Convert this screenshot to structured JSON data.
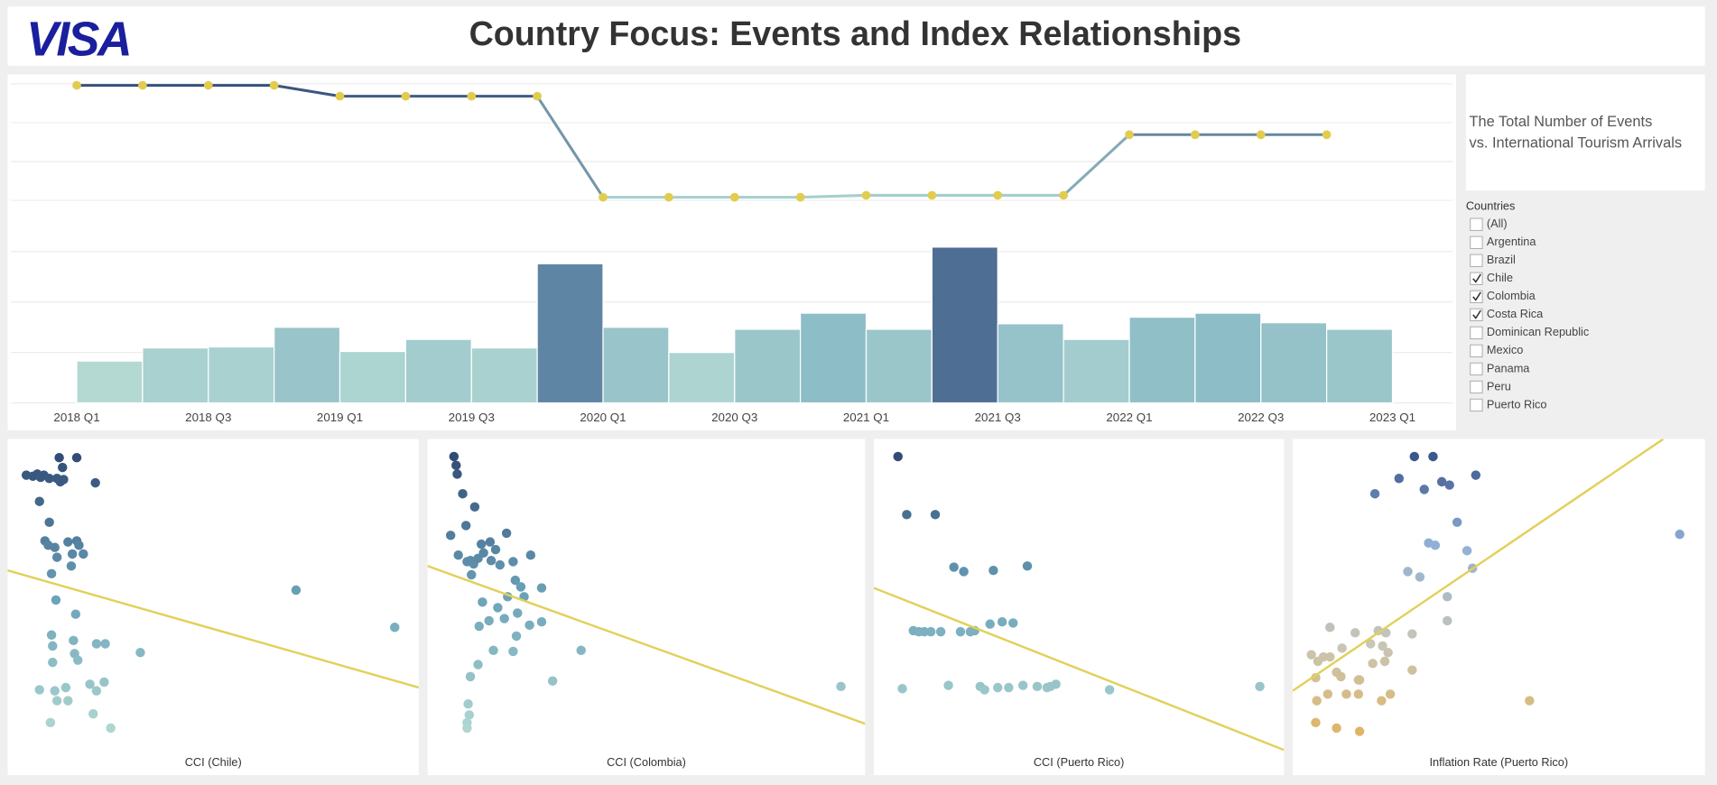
{
  "header": {
    "logo": "VISA",
    "title": "Country Focus: Events and Index Relationships"
  },
  "description": {
    "lines": [
      "The Total Number of Events",
      "vs. International Tourism Arrivals"
    ]
  },
  "filter": {
    "title": "Countries",
    "options": [
      {
        "label": "(All)",
        "checked": false
      },
      {
        "label": "Argentina",
        "checked": false
      },
      {
        "label": "Brazil",
        "checked": false
      },
      {
        "label": "Chile",
        "checked": true
      },
      {
        "label": "Colombia",
        "checked": true
      },
      {
        "label": "Costa Rica",
        "checked": true
      },
      {
        "label": "Dominican Republic",
        "checked": false
      },
      {
        "label": "Mexico",
        "checked": false
      },
      {
        "label": "Panama",
        "checked": false
      },
      {
        "label": "Peru",
        "checked": false
      },
      {
        "label": "Puerto Rico",
        "checked": false
      }
    ]
  },
  "chart_data": [
    {
      "type": "combo",
      "x": [
        0,
        1,
        2,
        3,
        4,
        5,
        6,
        7,
        8,
        9,
        10,
        11,
        12,
        13,
        14,
        15,
        16,
        17,
        18,
        19
      ],
      "xlim": [
        0,
        20
      ],
      "xticks": [
        {
          "value": 0,
          "label": "2018 Q1"
        },
        {
          "value": 2,
          "label": "2018 Q3"
        },
        {
          "value": 4,
          "label": "2019 Q1"
        },
        {
          "value": 6,
          "label": "2019 Q3"
        },
        {
          "value": 8,
          "label": "2020 Q1"
        },
        {
          "value": 10,
          "label": "2020 Q3"
        },
        {
          "value": 12,
          "label": "2021 Q1"
        },
        {
          "value": 14,
          "label": "2021 Q3"
        },
        {
          "value": 16,
          "label": "2022 Q1"
        },
        {
          "value": 18,
          "label": "2022 Q3"
        },
        {
          "value": 20,
          "label": "2023 Q1"
        }
      ],
      "ylim": [
        0,
        38
      ],
      "yticks": [
        0,
        10,
        20,
        30
      ],
      "y2lim": [
        0,
        3.1
      ],
      "y2ticks": [
        0,
        1,
        2,
        3
      ],
      "grid": true,
      "series": [
        {
          "type": "line",
          "axis": "y2",
          "color_range": [
            "#a9d3d1",
            "#2f4a78"
          ],
          "marker_color": "#e2cc4e",
          "values": [
            2.96,
            2.96,
            2.96,
            2.96,
            2.68,
            2.68,
            2.68,
            2.68,
            0.08,
            0.08,
            0.08,
            0.08,
            0.13,
            0.13,
            0.13,
            0.13,
            1.69,
            1.69,
            1.69,
            1.69
          ]
        },
        {
          "type": "bar",
          "color_range": [
            "#bde0d5",
            "#7fb2c2",
            "#32467a"
          ],
          "values": [
            8.3,
            10.9,
            11.1,
            15,
            10.2,
            12.6,
            10.9,
            27.6,
            15,
            10,
            14.6,
            17.8,
            14.6,
            30.9,
            15.7,
            12.6,
            17,
            17.8,
            15.9,
            14.6
          ]
        }
      ]
    },
    {
      "type": "scatter",
      "x_label": "CCI (Chile)",
      "xlim": [
        0,
        375
      ],
      "ylim": [
        0,
        275
      ],
      "color_range": [
        "#b6dcd3",
        "#6aa1b9",
        "#2c4470"
      ],
      "x": [
        17,
        23,
        27,
        30,
        33,
        38,
        45,
        48,
        50,
        51,
        63,
        47,
        80,
        29,
        38,
        34,
        37,
        43,
        45,
        40,
        55,
        59,
        63,
        65,
        69,
        58,
        263,
        353,
        44,
        62,
        40,
        41,
        60,
        61,
        81,
        89,
        41,
        64,
        121,
        29,
        43,
        53,
        75,
        88,
        45,
        55,
        81,
        78,
        39,
        94
      ],
      "values": [
        246,
        245,
        247,
        244,
        246,
        243,
        243,
        240,
        253,
        242,
        262,
        262,
        239,
        222,
        203,
        186,
        182,
        180,
        171,
        156,
        185,
        174,
        186,
        182,
        174,
        163,
        141,
        107,
        132,
        119,
        100,
        90,
        95,
        83,
        92,
        92,
        75,
        77,
        84,
        50,
        49,
        52,
        55,
        57,
        40,
        40,
        49,
        28,
        20,
        15
      ],
      "trend": {
        "color": "#e2d05a",
        "x": [
          0,
          375
        ],
        "values": [
          159,
          52
        ]
      }
    },
    {
      "type": "scatter",
      "x_label": "CCI (Colombia)",
      "xlim": [
        0,
        399
      ],
      "ylim": [
        0,
        275
      ],
      "color_range": [
        "#b6dcd3",
        "#6aa1b9",
        "#2c4470"
      ],
      "x": [
        24,
        26,
        27,
        32,
        43,
        21,
        35,
        49,
        57,
        72,
        28,
        36,
        39,
        42,
        46,
        51,
        62,
        40,
        58,
        66,
        78,
        94,
        80,
        85,
        104,
        50,
        64,
        73,
        88,
        70,
        82,
        56,
        47,
        93,
        104,
        81,
        60,
        78,
        140,
        46,
        39,
        114,
        37,
        38,
        36,
        36,
        377
      ],
      "values": [
        263,
        255,
        247,
        229,
        217,
        191,
        200,
        183,
        185,
        193,
        173,
        167,
        168,
        165,
        170,
        175,
        178,
        155,
        168,
        164,
        167,
        173,
        150,
        144,
        143,
        130,
        125,
        135,
        135,
        115,
        120,
        113,
        108,
        109,
        112,
        99,
        86,
        85,
        86,
        73,
        62,
        58,
        37,
        27,
        20,
        15,
        53
      ],
      "trend": {
        "color": "#e2d05a",
        "x": [
          0,
          399
        ],
        "values": [
          163,
          19
        ]
      }
    },
    {
      "type": "scatter",
      "x_label": "CCI (Puerto Rico)",
      "xlim": [
        0,
        374
      ],
      "ylim": [
        0,
        275
      ],
      "color_range": [
        "#b6dcd3",
        "#6aa1b9",
        "#2c4470"
      ],
      "x": [
        22,
        30,
        56,
        73,
        82,
        109,
        140,
        36,
        41,
        46,
        52,
        61,
        79,
        88,
        92,
        106,
        117,
        127,
        26,
        68,
        97,
        101,
        113,
        123,
        136,
        149,
        158,
        161,
        166,
        215,
        352
      ],
      "values": [
        263,
        210,
        210,
        162,
        158,
        159,
        163,
        104,
        103,
        103,
        103,
        103,
        103,
        103,
        104,
        110,
        112,
        111,
        51,
        54,
        53,
        50,
        52,
        52,
        54,
        53,
        52,
        53,
        55,
        50,
        53
      ],
      "trend": {
        "color": "#e2d05a",
        "x": [
          0,
          374
        ],
        "values": [
          143,
          -5
        ]
      }
    },
    {
      "type": "scatter",
      "x_label": "Inflation Rate (Puerto Rico)",
      "xlim": [
        0,
        376
      ],
      "ylim": [
        0,
        275
      ],
      "color_range": [
        "#e2b45c",
        "#c8c6b6",
        "#8fb0d6",
        "#2f4a80"
      ],
      "x": [
        111,
        128,
        97,
        120,
        136,
        143,
        167,
        75,
        150,
        353,
        124,
        130,
        159,
        105,
        116,
        164,
        141,
        141,
        34,
        57,
        78,
        85,
        109,
        17,
        28,
        34,
        23,
        45,
        71,
        82,
        87,
        73,
        84,
        109,
        40,
        60,
        21,
        44,
        61,
        22,
        32,
        49,
        60,
        89,
        81,
        21,
        40,
        61,
        216
      ],
      "values": [
        263,
        263,
        243,
        233,
        240,
        237,
        246,
        229,
        203,
        192,
        184,
        182,
        177,
        158,
        153,
        161,
        135,
        113,
        107,
        102,
        104,
        102,
        101,
        82,
        80,
        80,
        76,
        88,
        92,
        90,
        84,
        74,
        76,
        68,
        66,
        59,
        61,
        62,
        59,
        40,
        46,
        46,
        46,
        46,
        40,
        20,
        15,
        12,
        40
      ],
      "trend": {
        "color": "#e2d05a",
        "x": [
          0,
          338
        ],
        "values": [
          49,
          279
        ]
      }
    }
  ]
}
